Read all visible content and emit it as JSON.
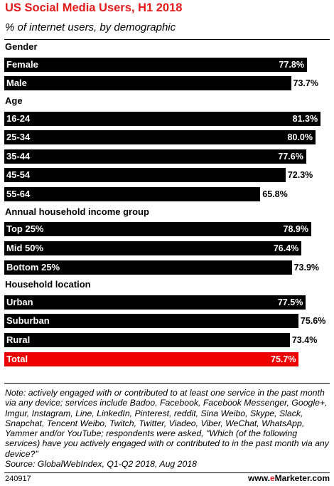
{
  "header": {
    "title": "US Social Media Users, H1 2018",
    "subtitle": "% of internet users, by demographic"
  },
  "chart_data": {
    "type": "bar",
    "orientation": "horizontal",
    "title": "US Social Media Users, H1 2018",
    "subtitle": "% of internet users, by demographic",
    "unit": "%",
    "xlim": [
      0,
      100
    ],
    "grid": false,
    "bar_color": "#000000",
    "highlight_color": "#ee0000",
    "groups": [
      {
        "name": "Gender",
        "items": [
          {
            "label": "Female",
            "value": 77.8,
            "text": "77.8%"
          },
          {
            "label": "Male",
            "value": 73.7,
            "text": "73.7%"
          }
        ]
      },
      {
        "name": "Age",
        "items": [
          {
            "label": "16-24",
            "value": 81.3,
            "text": "81.3%"
          },
          {
            "label": "25-34",
            "value": 80.0,
            "text": "80.0%"
          },
          {
            "label": "35-44",
            "value": 77.6,
            "text": "77.6%"
          },
          {
            "label": "45-54",
            "value": 72.3,
            "text": "72.3%"
          },
          {
            "label": "55-64",
            "value": 65.8,
            "text": "65.8%"
          }
        ]
      },
      {
        "name": "Annual household income group",
        "items": [
          {
            "label": "Top 25%",
            "value": 78.9,
            "text": "78.9%"
          },
          {
            "label": "Mid 50%",
            "value": 76.4,
            "text": "76.4%"
          },
          {
            "label": "Bottom 25%",
            "value": 73.9,
            "text": "73.9%"
          }
        ]
      },
      {
        "name": "Household location",
        "items": [
          {
            "label": "Urban",
            "value": 77.5,
            "text": "77.5%"
          },
          {
            "label": "Suburban",
            "value": 75.6,
            "text": "75.6%"
          },
          {
            "label": "Rural",
            "value": 73.4,
            "text": "73.4%"
          }
        ]
      },
      {
        "name": "",
        "items": [
          {
            "label": "Total",
            "value": 75.7,
            "text": "75.7%",
            "highlight": true
          }
        ]
      }
    ]
  },
  "footer": {
    "note": "Note: actively engaged with or contributed to at least one service in the past month via any device; services include Badoo, Facebook, Facebook Messenger, Google+, Imgur, Instagram, Line, LinkedIn, Pinterest, reddit, Sina Weibo, Skype, Slack, Snapchat, Tencent Weibo, Twitch, Twitter, Viadeo, Viber, WeChat, WhatsApp, Yammer and/or YouTube; respondents were asked, \"Which (of the following services) have you actively engaged with or contributed to in the past month via any device?\"",
    "source": "Source: GlobalWebIndex, Q1-Q2 2018, Aug 2018",
    "id": "240917",
    "brand_prefix": "www.",
    "brand_e": "e",
    "brand_rest": "Marketer.com"
  }
}
